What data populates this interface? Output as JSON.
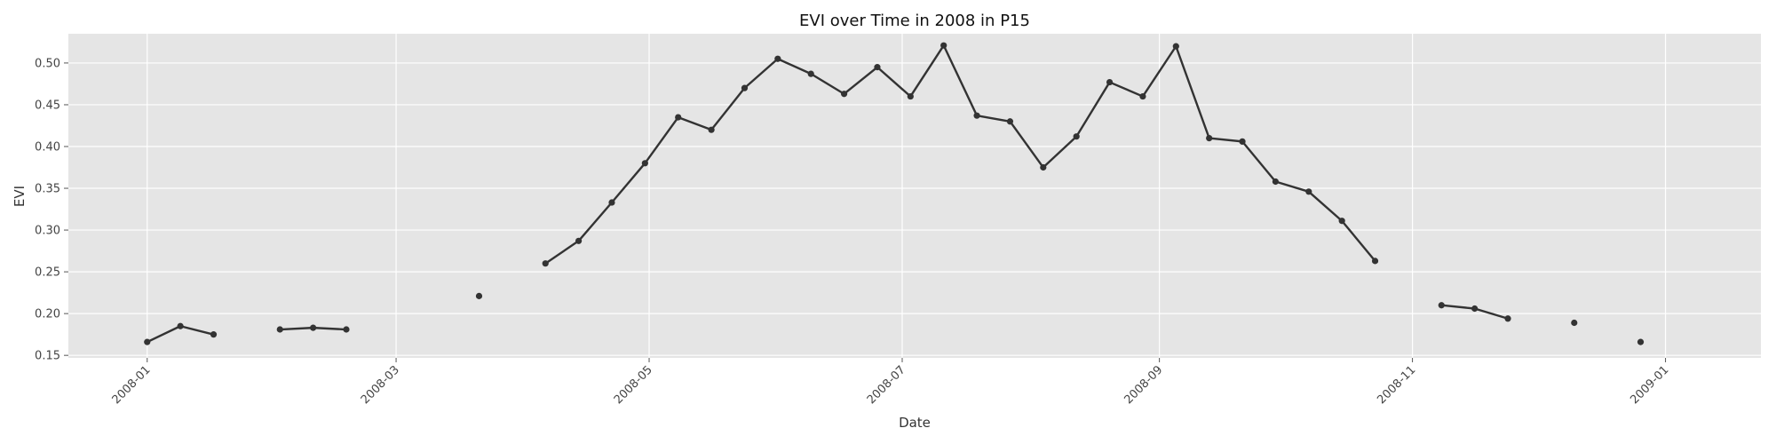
{
  "chart_data": {
    "type": "line",
    "title": "EVI over Time in 2008 in P15",
    "xlabel": "Date",
    "ylabel": "EVI",
    "xlim": [
      "2007-12-13",
      "2009-01-24"
    ],
    "ylim": [
      0.147,
      0.535
    ],
    "grid": true,
    "colors": {
      "background": "#e5e5e5",
      "grid": "#ffffff",
      "line": "#333333"
    },
    "x_ticks": [
      "2008-01-01",
      "2008-03-01",
      "2008-05-01",
      "2008-07-01",
      "2008-09-01",
      "2008-11-01",
      "2009-01-01"
    ],
    "x_tick_labels": [
      "2008-01",
      "2008-03",
      "2008-05",
      "2008-07",
      "2008-09",
      "2008-11",
      "2009-01"
    ],
    "y_ticks": [
      0.15,
      0.2,
      0.25,
      0.3,
      0.35,
      0.4,
      0.45,
      0.5
    ],
    "y_tick_labels": [
      "0.15",
      "0.20",
      "0.25",
      "0.30",
      "0.35",
      "0.40",
      "0.45",
      "0.50"
    ],
    "series": [
      {
        "x": [
          "2008-01-01",
          "2008-01-09",
          "2008-01-17",
          "2008-01-25",
          "2008-02-02",
          "2008-02-10",
          "2008-02-18",
          "2008-02-26",
          "2008-03-05",
          "2008-03-13",
          "2008-03-21",
          "2008-03-29",
          "2008-04-06",
          "2008-04-14",
          "2008-04-22",
          "2008-04-30",
          "2008-05-08",
          "2008-05-16",
          "2008-05-24",
          "2008-06-01",
          "2008-06-09",
          "2008-06-17",
          "2008-06-25",
          "2008-07-03",
          "2008-07-11",
          "2008-07-19",
          "2008-07-27",
          "2008-08-04",
          "2008-08-12",
          "2008-08-20",
          "2008-08-28",
          "2008-09-05",
          "2008-09-13",
          "2008-09-21",
          "2008-09-29",
          "2008-10-07",
          "2008-10-15",
          "2008-10-23",
          "2008-10-31",
          "2008-11-08",
          "2008-11-16",
          "2008-11-24",
          "2008-12-02",
          "2008-12-10",
          "2008-12-18",
          "2008-12-26"
        ],
        "y": [
          0.166,
          0.185,
          0.175,
          null,
          0.181,
          0.183,
          0.181,
          null,
          null,
          null,
          0.221,
          null,
          0.26,
          0.287,
          0.333,
          0.38,
          0.435,
          0.42,
          0.47,
          0.505,
          0.487,
          0.463,
          0.495,
          0.46,
          0.521,
          0.437,
          0.43,
          0.375,
          0.412,
          0.477,
          0.46,
          0.52,
          0.41,
          0.406,
          0.358,
          0.346,
          0.311,
          0.263,
          null,
          0.21,
          0.206,
          0.194,
          null,
          0.189,
          null,
          0.166
        ]
      }
    ]
  }
}
